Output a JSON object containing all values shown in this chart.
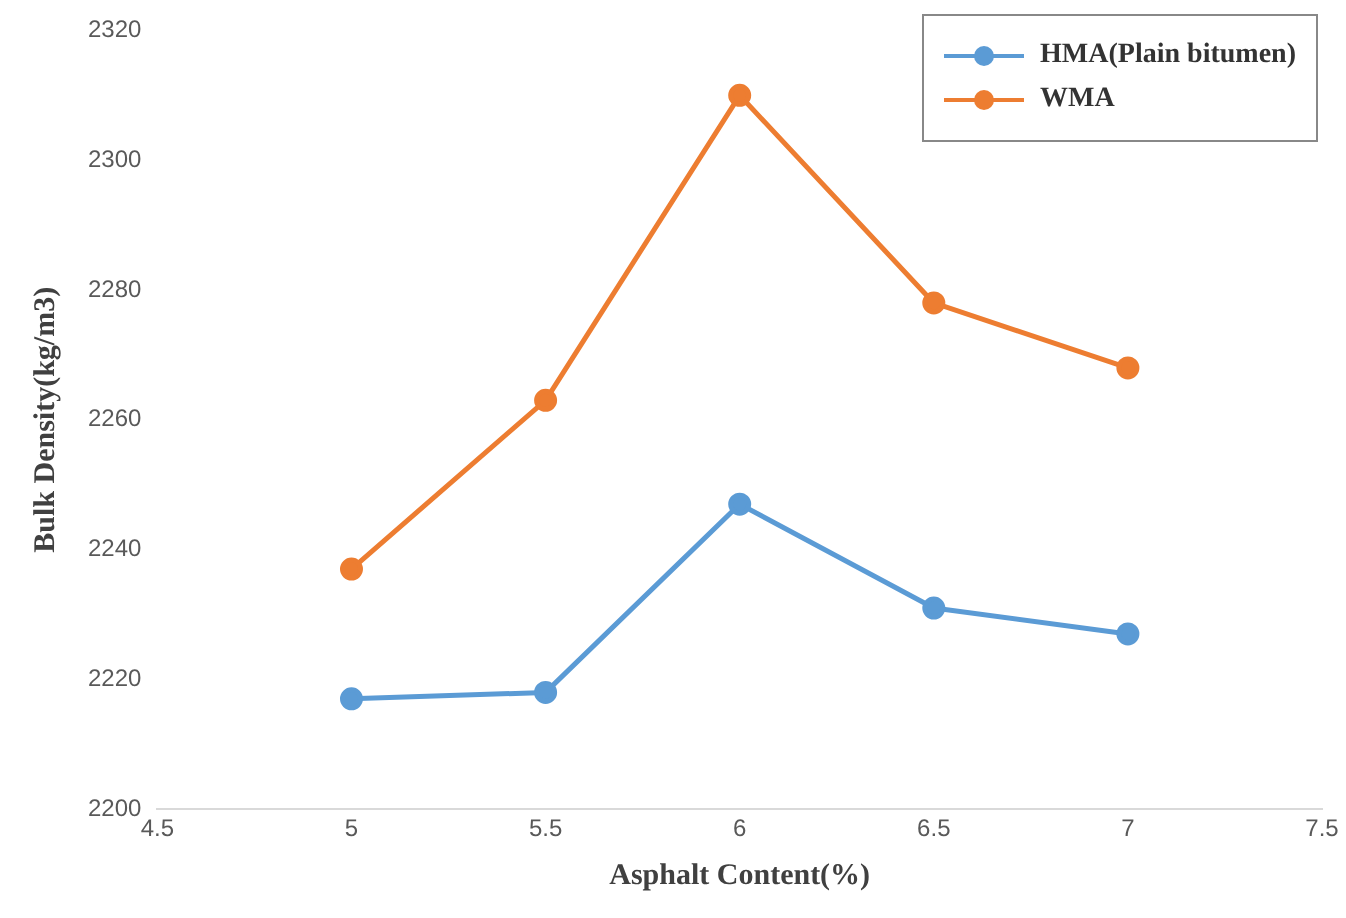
{
  "chart_data": {
    "type": "line",
    "xlabel": "Asphalt Content(%)",
    "ylabel": "Bulk Density(kg/m3)",
    "x": [
      5,
      5.5,
      6,
      6.5,
      7
    ],
    "series": [
      {
        "name": "HMA(Plain bitumen)",
        "color": "#5b9bd5",
        "values": [
          2217,
          2218,
          2247,
          2231,
          2227
        ]
      },
      {
        "name": "WMA",
        "color": "#ed7d31",
        "values": [
          2237,
          2263,
          2310,
          2278,
          2268
        ]
      }
    ],
    "xlim": [
      4.5,
      7.5
    ],
    "xticks": [
      4.5,
      5,
      5.5,
      6,
      6.5,
      7,
      7.5
    ],
    "ylim": [
      2200,
      2320
    ],
    "yticks": [
      2200,
      2220,
      2240,
      2260,
      2280,
      2300,
      2320
    ],
    "grid": false,
    "legend": "top right",
    "marker": "circle"
  }
}
